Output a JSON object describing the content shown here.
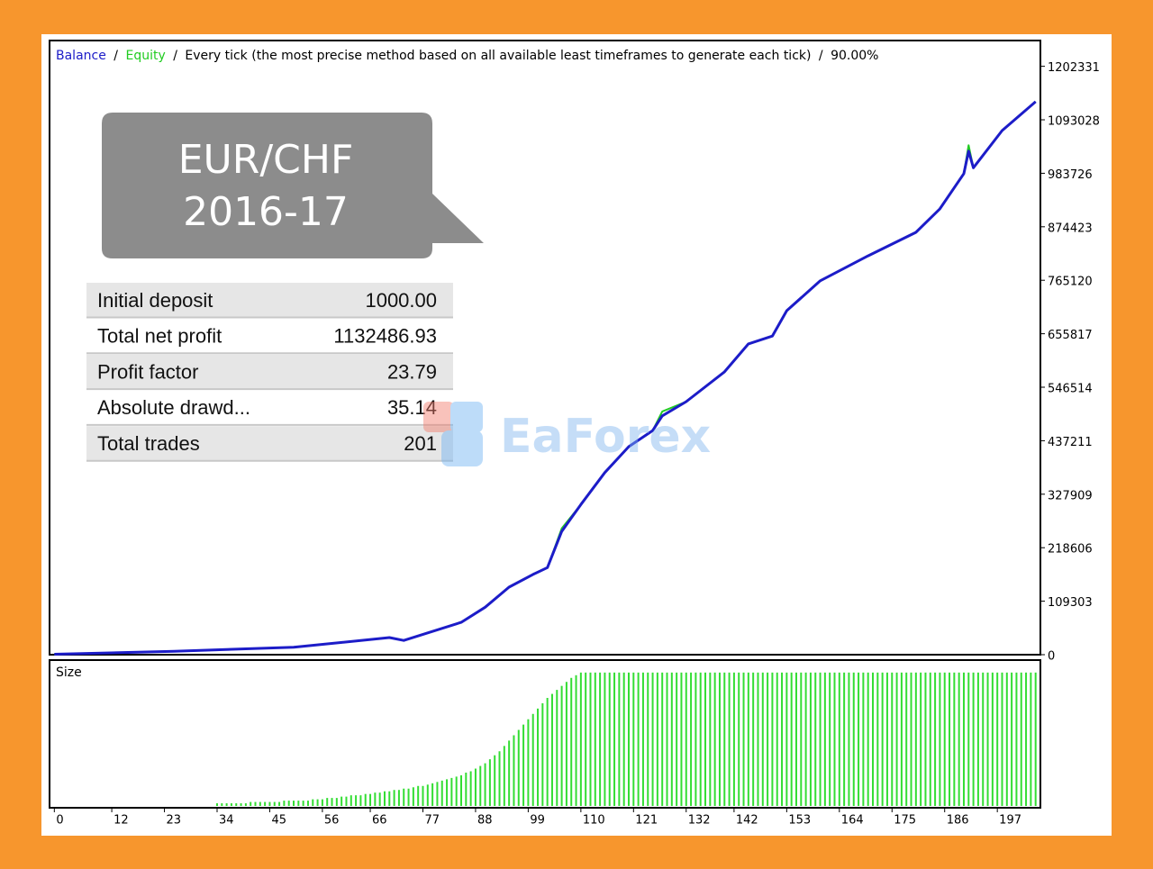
{
  "chart_data": [
    {
      "type": "line",
      "subtitle": "Every tick (the most precise method based on all available least timeframes to generate each tick)",
      "quality": "90.00%",
      "separator": "/",
      "x": [
        0,
        25,
        50,
        70,
        73,
        85,
        90,
        95,
        100,
        103,
        106,
        110,
        115,
        120,
        125,
        127,
        132,
        140,
        145,
        150,
        153,
        160,
        170,
        180,
        185,
        190,
        191,
        192,
        198,
        205
      ],
      "series": [
        {
          "name": "Balance",
          "color": "#1c1cc8",
          "values": [
            1000,
            7000,
            15000,
            35000,
            29000,
            66000,
            97000,
            138000,
            164000,
            178000,
            252000,
            307000,
            372000,
            425000,
            458000,
            488000,
            517000,
            578000,
            635000,
            651000,
            703000,
            764000,
            815000,
            863000,
            911000,
            983000,
            1029000,
            995000,
            1071000,
            1130000
          ]
        },
        {
          "name": "Equity",
          "color": "#22cc22",
          "values": [
            1000,
            7000,
            15000,
            35000,
            29000,
            66000,
            97000,
            138000,
            164000,
            178000,
            258000,
            307000,
            372000,
            425000,
            458000,
            497000,
            517000,
            578000,
            635000,
            651000,
            703000,
            764000,
            815000,
            863000,
            911000,
            983000,
            1041000,
            995000,
            1071000,
            1130000
          ]
        }
      ],
      "xlim": [
        -1,
        206
      ],
      "ylim": [
        0,
        1255000
      ],
      "yticks": [
        0,
        109303,
        218606,
        327909,
        437211,
        546514,
        655817,
        765120,
        874423,
        983726,
        1093028,
        1202331
      ]
    },
    {
      "type": "bar",
      "title": "Size",
      "color": "#33dd33",
      "x": [
        34,
        35,
        36,
        37,
        38,
        39,
        40,
        41,
        42,
        43,
        44,
        45,
        46,
        47,
        48,
        49,
        50,
        51,
        52,
        53,
        54,
        55,
        56,
        57,
        58,
        59,
        60,
        61,
        62,
        63,
        64,
        65,
        66,
        67,
        68,
        69,
        70,
        71,
        72,
        73,
        74,
        75,
        76,
        77,
        78,
        79,
        80,
        81,
        82,
        83,
        84,
        85,
        86,
        87,
        88,
        89,
        90,
        91,
        92,
        93,
        94,
        95,
        96,
        97,
        98,
        99,
        100,
        101,
        102,
        103,
        104,
        105,
        106,
        107,
        108,
        109,
        110,
        111,
        112,
        113,
        114,
        115,
        116,
        117,
        118,
        119,
        120,
        121,
        122,
        123,
        124,
        125,
        126,
        127,
        128,
        129,
        130,
        131,
        132,
        133,
        134,
        135,
        136,
        137,
        138,
        139,
        140,
        141,
        142,
        143,
        144,
        145,
        146,
        147,
        148,
        149,
        150,
        151,
        152,
        153,
        154,
        155,
        156,
        157,
        158,
        159,
        160,
        161,
        162,
        163,
        164,
        165,
        166,
        167,
        168,
        169,
        170,
        171,
        172,
        173,
        174,
        175,
        176,
        177,
        178,
        179,
        180,
        181,
        182,
        183,
        184,
        185,
        186,
        187,
        188,
        189,
        190,
        191,
        192,
        193,
        194,
        195,
        196,
        197,
        198,
        199,
        200,
        201,
        202,
        203,
        204,
        205
      ],
      "values": [
        2,
        2,
        2,
        2,
        2,
        2,
        2,
        3,
        3,
        3,
        3,
        3,
        3,
        3,
        4,
        4,
        4,
        4,
        4,
        4,
        5,
        5,
        5,
        6,
        6,
        6,
        7,
        7,
        8,
        8,
        8,
        9,
        9,
        10,
        10,
        11,
        11,
        12,
        12,
        13,
        13,
        14,
        15,
        15,
        16,
        17,
        18,
        19,
        20,
        21,
        22,
        23,
        25,
        26,
        28,
        30,
        32,
        35,
        38,
        41,
        45,
        49,
        53,
        57,
        61,
        65,
        69,
        73,
        77,
        81,
        84,
        87,
        90,
        93,
        96,
        98,
        100,
        100,
        100,
        100,
        100,
        100,
        100,
        100,
        100,
        100,
        100,
        100,
        100,
        100,
        100,
        100,
        100,
        100,
        100,
        100,
        100,
        100,
        100,
        100,
        100,
        100,
        100,
        100,
        100,
        100,
        100,
        100,
        100,
        100,
        100,
        100,
        100,
        100,
        100,
        100,
        100,
        100,
        100,
        100,
        100,
        100,
        100,
        100,
        100,
        100,
        100,
        100,
        100,
        100,
        100,
        100,
        100,
        100,
        100,
        100,
        100,
        100,
        100,
        100,
        100,
        100,
        100,
        100,
        100,
        100,
        100,
        100,
        100,
        100,
        100,
        100,
        100,
        100,
        100,
        100,
        100,
        100,
        100,
        100,
        100,
        100,
        100,
        100,
        100,
        100,
        100,
        100,
        100,
        100,
        100,
        100
      ],
      "xlim": [
        -1,
        206
      ],
      "ylim": [
        0,
        108
      ],
      "xticks": [
        0,
        12,
        23,
        34,
        45,
        56,
        66,
        77,
        88,
        99,
        110,
        121,
        132,
        142,
        153,
        164,
        175,
        186,
        197
      ]
    }
  ],
  "callout": {
    "pair": "EUR/CHF",
    "period": "2016-17"
  },
  "stats": {
    "rows": [
      [
        "Initial deposit",
        "1000.00"
      ],
      [
        "Total net profit",
        "1132486.93"
      ],
      [
        "Profit factor",
        "23.79"
      ],
      [
        "Absolute drawd...",
        "35.14"
      ],
      [
        "Total trades",
        "201"
      ]
    ]
  },
  "watermark": "EaForex"
}
